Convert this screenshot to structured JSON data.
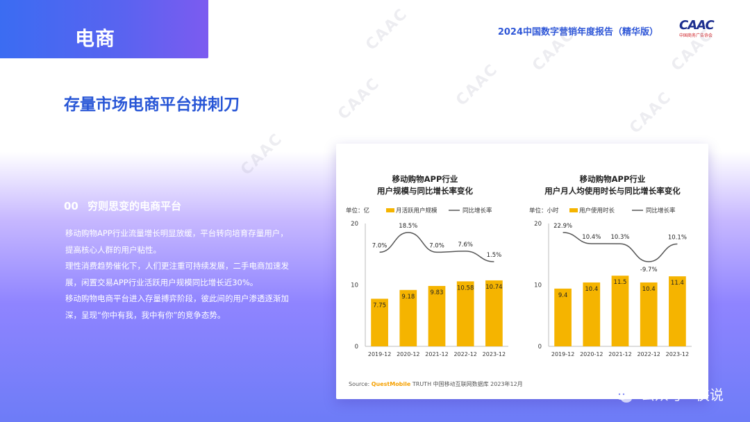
{
  "header": {
    "section_tag": "电商",
    "report_title": "2024中国数字营销年度报告（精华版）",
    "logo_text": "CAAC",
    "logo_sub": "中国商务广告协会"
  },
  "watermark_text": "CAAC",
  "main_title": "存量市场电商平台拼刺刀",
  "left": {
    "index": "00",
    "heading": "穷则思变的电商平台",
    "paragraphs": [
      "移动购物APP行业流量增长明显放缓，平台转向培育存量用户，提高核心人群的用户粘性。",
      "理性消费趋势催化下，人们更注重可持续发展，二手电商加速发展，闲置交易APP行业活跃用户规模同比增长近30%。",
      "移动购物电商平台进入存量搏弈阶段，彼此间的用户渗透逐渐加深，呈现“你中有我，我中有你”的竞争态势。"
    ]
  },
  "source": {
    "label": "Source:",
    "brand": "QuestMobile",
    "text": "TRUTH 中国移动互联网数据库 2023年12月"
  },
  "footer": {
    "brand_text": "公众号 · 侠说"
  },
  "colors": {
    "bar": "#f5b400",
    "line": "#555555",
    "accent": "#2856d6"
  },
  "chart_data": [
    {
      "type": "bar",
      "title": [
        "移动购物APP行业",
        "用户规模与同比增长率变化"
      ],
      "unit_label": "单位：亿",
      "categories": [
        "2019-12",
        "2020-12",
        "2021-12",
        "2022-12",
        "2023-12"
      ],
      "ylim": [
        0,
        20
      ],
      "yticks": [
        0,
        10,
        20
      ],
      "series": [
        {
          "name": "月活跃用户规模",
          "kind": "bar",
          "values": [
            7.75,
            9.18,
            9.83,
            10.58,
            10.74
          ],
          "labels": [
            "7.75",
            "9.18",
            "9.83",
            "10.58",
            "10.74"
          ]
        },
        {
          "name": "同比增长率",
          "kind": "line",
          "values": [
            7.0,
            18.5,
            7.0,
            7.6,
            1.5
          ],
          "labels": [
            "7.0%",
            "18.5%",
            "7.0%",
            "7.6%",
            "1.5%"
          ]
        }
      ]
    },
    {
      "type": "bar",
      "title": [
        "移动购物APP行业",
        "用户月人均使用时长与同比增长率变化"
      ],
      "unit_label": "单位：小时",
      "categories": [
        "2019-12",
        "2020-12",
        "2021-12",
        "2022-12",
        "2023-12"
      ],
      "ylim": [
        0,
        20
      ],
      "yticks": [
        0,
        10,
        20
      ],
      "series": [
        {
          "name": "用户使用时长",
          "kind": "bar",
          "values": [
            9.4,
            10.4,
            11.5,
            10.4,
            11.4
          ],
          "labels": [
            "9.4",
            "10.4",
            "11.5",
            "10.4",
            "11.4"
          ]
        },
        {
          "name": "同比增长率",
          "kind": "line",
          "values": [
            22.9,
            10.4,
            10.3,
            -9.7,
            10.1
          ],
          "labels": [
            "22.9%",
            "10.4%",
            "10.3%",
            "-9.7%",
            "10.1%"
          ]
        }
      ]
    }
  ]
}
